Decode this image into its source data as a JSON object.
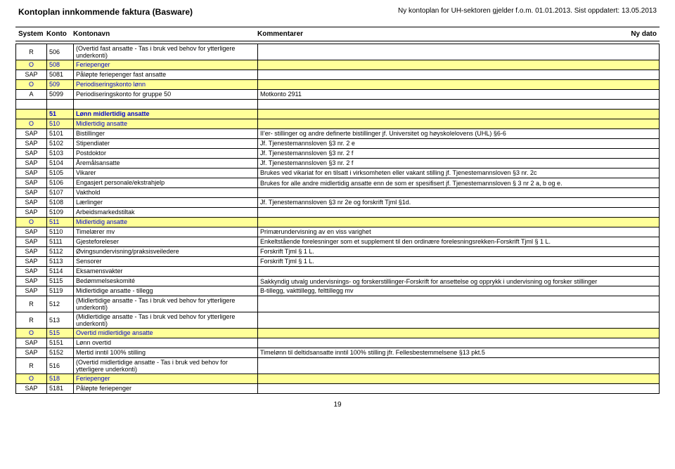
{
  "header": {
    "title_left": "Kontoplan innkommende faktura (Basware)",
    "title_right": "Ny kontoplan for UH-sektoren gjelder f.o.m. 01.01.2013. Sist oppdatert: 13.05.2013"
  },
  "columns": {
    "c1": "System",
    "c2": "Konto",
    "c3": "Kontonavn",
    "c4": "Kommentarer",
    "c5": "Ny dato"
  },
  "rows": [
    {
      "type": "plain",
      "sys": "R",
      "konto": "506",
      "navn": "(Overtid fast ansatte - Tas i bruk ved behov for ytterligere underkonti)",
      "komm": ""
    },
    {
      "type": "sub",
      "sys": "O",
      "konto": "508",
      "navn": "Feriepenger",
      "komm": ""
    },
    {
      "type": "plain",
      "sys": "SAP",
      "konto": "5081",
      "navn": "Påløpte feriepenger fast ansatte",
      "komm": ""
    },
    {
      "type": "sub",
      "sys": "O",
      "konto": "509",
      "navn": "Periodiseringskonto lønn",
      "komm": ""
    },
    {
      "type": "plain",
      "sys": "A",
      "konto": "5099",
      "navn": "Periodiseringskonto for gruppe 50",
      "komm": "Motkonto 2911"
    },
    {
      "type": "blank"
    },
    {
      "type": "section",
      "sys": "",
      "konto": "51",
      "navn": "Lønn midlertidig ansatte",
      "komm": ""
    },
    {
      "type": "sub",
      "sys": "O",
      "konto": "510",
      "navn": "Midlertidig ansatte",
      "komm": ""
    },
    {
      "type": "plain",
      "sys": "SAP",
      "konto": "5101",
      "navn": "Bistillinger",
      "komm": "II'er- stillinger  og andre definerte bistillinger jf. Universitet og høyskolelovens (UHL) §6-6"
    },
    {
      "type": "plain",
      "sys": "SAP",
      "konto": "5102",
      "navn": "Stipendiater",
      "komm": "Jf. Tjenestemannsloven §3 nr. 2 e"
    },
    {
      "type": "plain",
      "sys": "SAP",
      "konto": "5103",
      "navn": "Postdoktor",
      "komm": "Jf. Tjenestemannsloven §3 nr. 2 f"
    },
    {
      "type": "plain",
      "sys": "SAP",
      "konto": "5104",
      "navn": "Åremålsansatte",
      "komm": "Jf. Tjenestemannsloven §3 nr. 2 f"
    },
    {
      "type": "plain",
      "sys": "SAP",
      "konto": "5105",
      "navn": "Vikarer",
      "komm": "Brukes ved vikariat for en tilsatt i virksomheten eller vakant stilling jf. Tjenestemannsloven §3 nr. 2c"
    },
    {
      "type": "plain",
      "sys": "SAP",
      "konto": "5106",
      "navn": "Engasjert personale/ekstrahjelp",
      "komm": "Brukes for alle andre midlertidig ansatte enn de som er spesifisert jf. Tjenestemannsloven § 3 nr 2 a, b og  e."
    },
    {
      "type": "plain",
      "sys": "SAP",
      "konto": "5107",
      "navn": "Vakthold",
      "komm": ""
    },
    {
      "type": "plain",
      "sys": "SAP",
      "konto": "5108",
      "navn": "Lærlinger",
      "komm": "Jf. Tjenestemannsloven §3 nr 2e og forskrift Tjml §1d."
    },
    {
      "type": "plain",
      "sys": "SAP",
      "konto": "5109",
      "navn": "Arbeidsmarkedstiltak",
      "komm": ""
    },
    {
      "type": "sub",
      "sys": "O",
      "konto": "511",
      "navn": "Midlertidig ansatte",
      "komm": ""
    },
    {
      "type": "plain",
      "sys": "SAP",
      "konto": "5110",
      "navn": "Timelærer mv",
      "komm": "Primærundervisning av en viss varighet"
    },
    {
      "type": "plain",
      "sys": "SAP",
      "konto": "5111",
      "navn": "Gjesteforeleser",
      "komm": "Enkeltstående forelesninger som et supplement til den ordinære forelesningsrekken-Forskrift Tjml § 1 L."
    },
    {
      "type": "plain",
      "sys": "SAP",
      "konto": "5112",
      "navn": "Øvingsundervisning/praksisveiledere",
      "komm": "Forskrift Tjml § 1 L."
    },
    {
      "type": "plain",
      "sys": "SAP",
      "konto": "5113",
      "navn": "Sensorer",
      "komm": "Forskrift Tjml § 1 L."
    },
    {
      "type": "plain",
      "sys": "SAP",
      "konto": "5114",
      "navn": "Eksamensvakter",
      "komm": ""
    },
    {
      "type": "plain",
      "sys": "SAP",
      "konto": "5115",
      "navn": "Bedømmelseskomité",
      "komm": "Sakkyndig utvalg  undervisnings- og forskerstillinger-Forskrift for ansettelse og opprykk i undervisning og forsker stillinger"
    },
    {
      "type": "plain",
      "sys": "SAP",
      "konto": "5119",
      "navn": "Midlertidige ansatte - tillegg",
      "komm": "B-tillegg, vakttillegg, felttillegg mv"
    },
    {
      "type": "plain",
      "sys": "R",
      "konto": "512",
      "navn": "(Midlertidige ansatte - Tas i bruk ved behov for ytterligere underkonti)",
      "komm": ""
    },
    {
      "type": "plain",
      "sys": "R",
      "konto": "513",
      "navn": "(Midlertidige ansatte - Tas i bruk ved behov for ytterligere underkonti)",
      "komm": ""
    },
    {
      "type": "sub",
      "sys": "O",
      "konto": "515",
      "navn": "Overtid midlertidige ansatte",
      "komm": ""
    },
    {
      "type": "plain",
      "sys": "SAP",
      "konto": "5151",
      "navn": "Lønn overtid",
      "komm": ""
    },
    {
      "type": "plain",
      "sys": "SAP",
      "konto": "5152",
      "navn": "Mertid inntil 100% stilling",
      "komm": "Timelønn til deltidsansatte inntil 100% stilling jfr. Fellesbestemmelsene §13 pkt.5"
    },
    {
      "type": "plain",
      "sys": "R",
      "konto": "516",
      "navn": "(Overtid midlertidige ansatte - Tas i bruk ved behov for ytterligere underkonti)",
      "komm": ""
    },
    {
      "type": "sub",
      "sys": "O",
      "konto": "518",
      "navn": "Feriepenger",
      "komm": ""
    },
    {
      "type": "plain",
      "sys": "SAP",
      "konto": "5181",
      "navn": "Påløpte feriepenger",
      "komm": ""
    }
  ],
  "page_number": "19",
  "style": {
    "section_bg": "#ffff99",
    "section_fg": "#0000cc"
  }
}
